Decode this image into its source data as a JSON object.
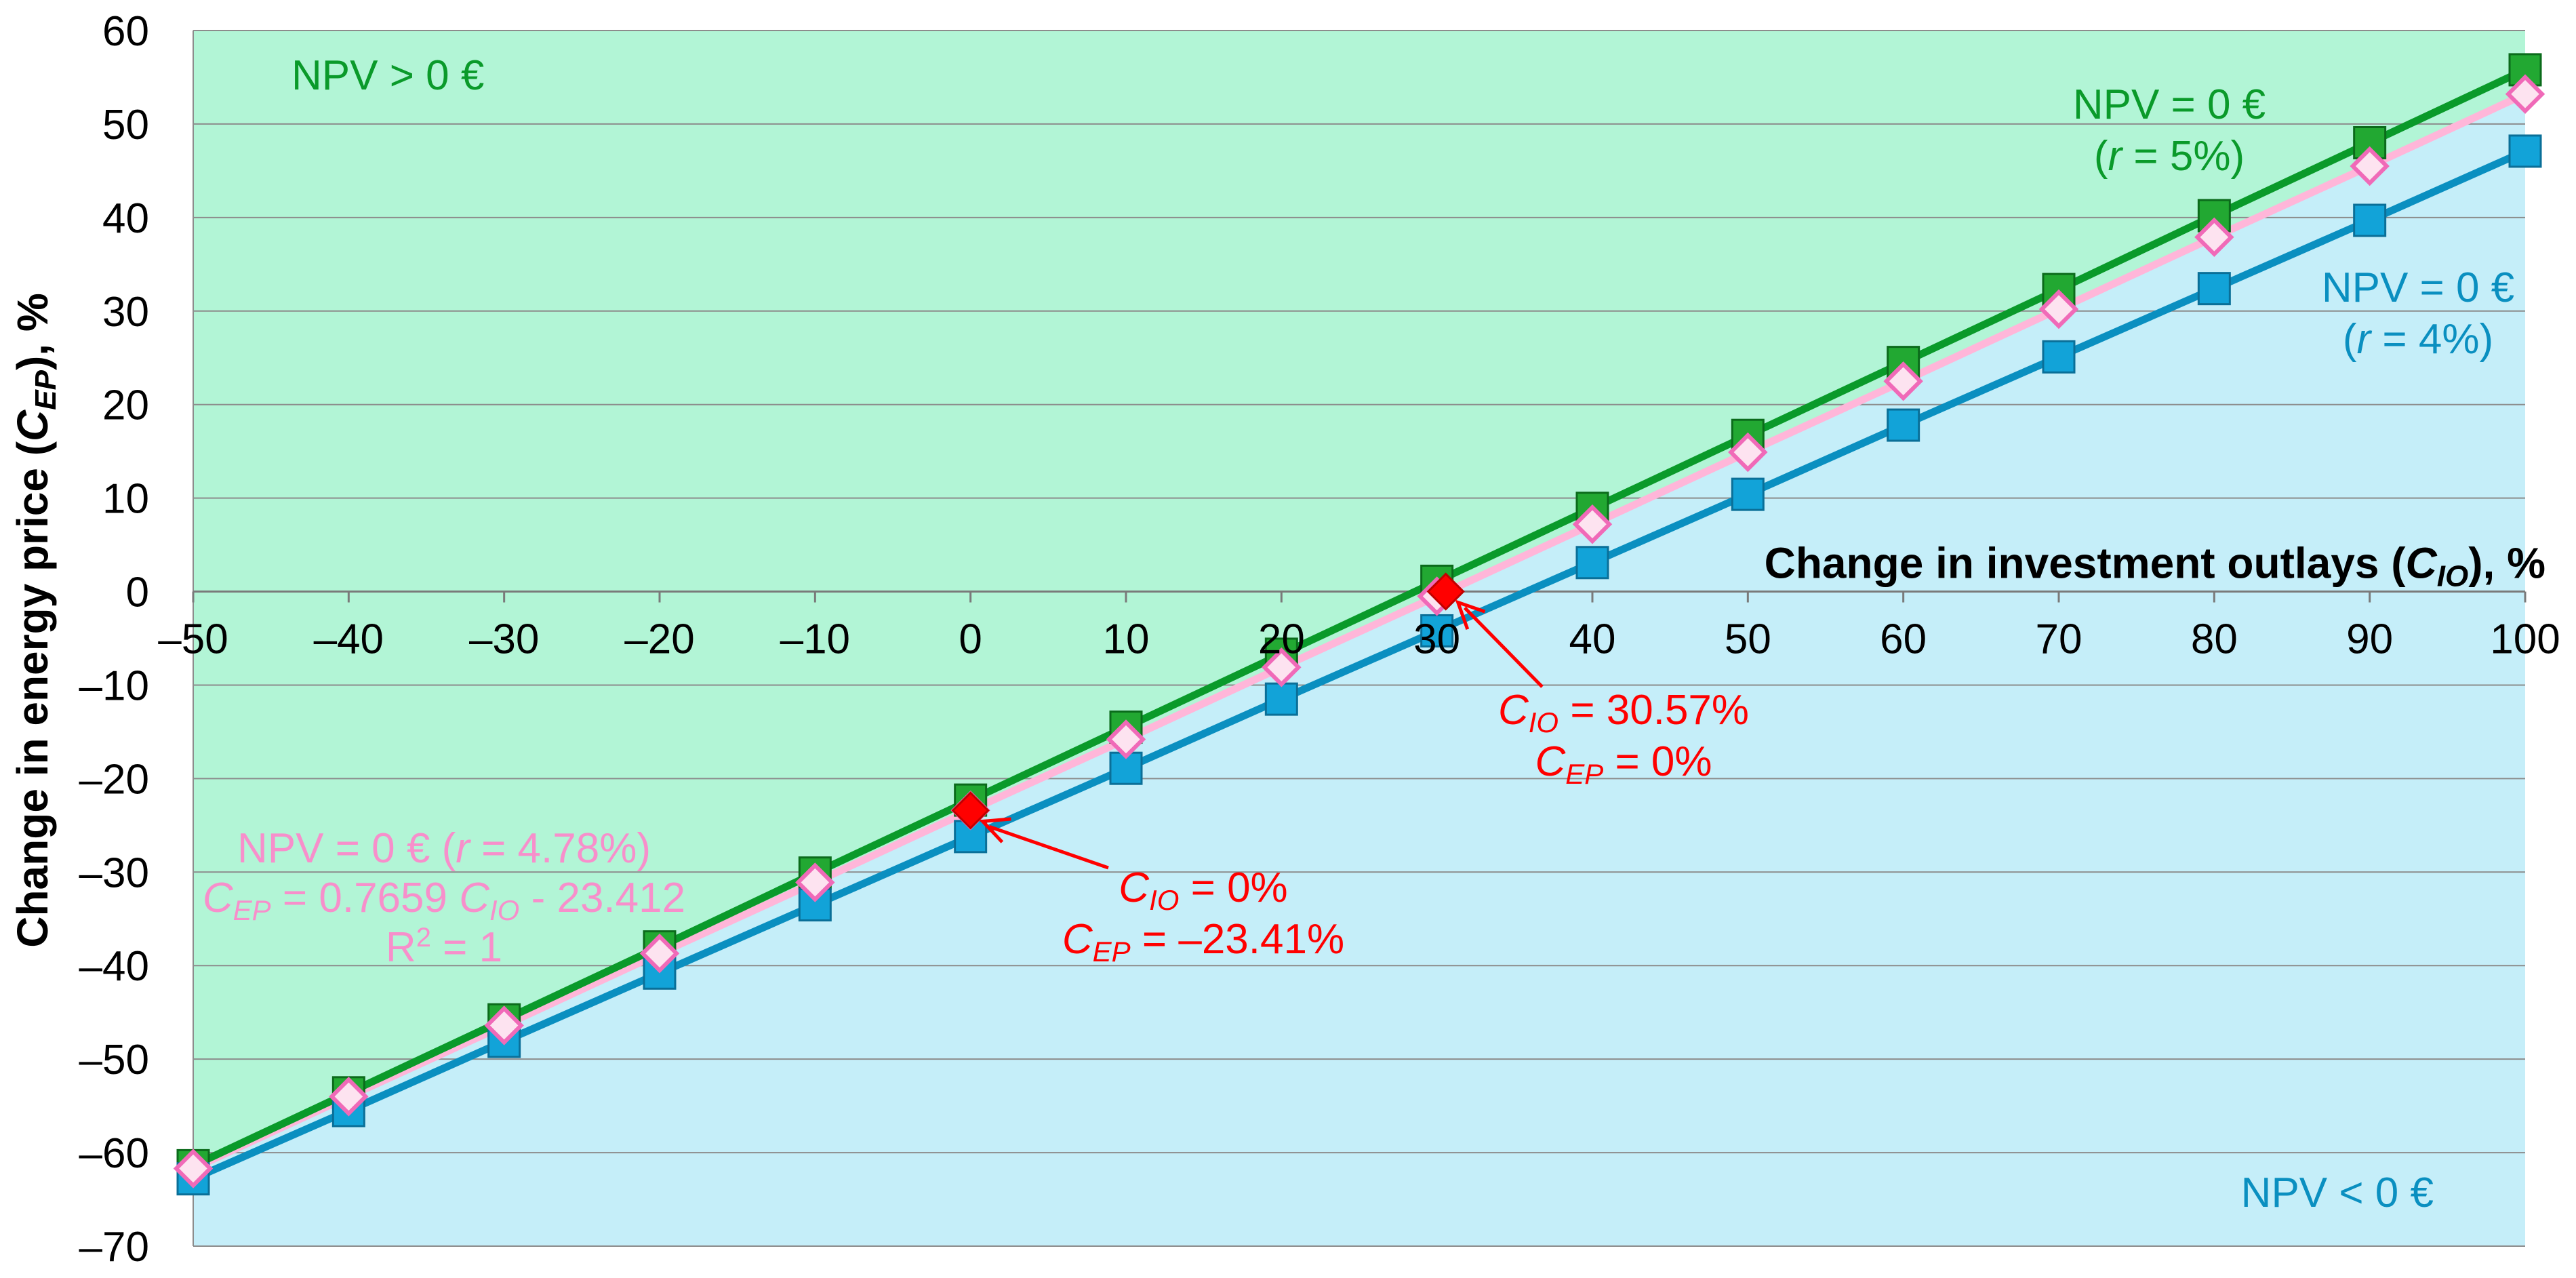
{
  "chart_data": {
    "type": "line",
    "xlabel": {
      "pre": "Change in investment outlays (",
      "var": "C",
      "sub": "IO",
      "post": "), %"
    },
    "ylabel": {
      "pre": "Change in energy price (",
      "var": "C",
      "sub": "EP",
      "post": "), %"
    },
    "xlim": [
      -50,
      100
    ],
    "ylim": [
      -70,
      60
    ],
    "xticks": [
      -50,
      -40,
      -30,
      -20,
      -10,
      0,
      10,
      20,
      30,
      40,
      50,
      60,
      70,
      80,
      90,
      100
    ],
    "yticks": [
      60,
      50,
      40,
      30,
      20,
      10,
      0,
      -10,
      -20,
      -30,
      -40,
      -50,
      -60,
      -70
    ],
    "tick_labels": {
      "x": [
        "–50",
        "–40",
        "–30",
        "–20",
        "–10",
        "0",
        "10",
        "20",
        "30",
        "40",
        "50",
        "60",
        "70",
        "80",
        "90",
        "100"
      ],
      "y": [
        "60",
        "50",
        "40",
        "30",
        "20",
        "10",
        "0",
        "–10",
        "–20",
        "–30",
        "–40",
        "–50",
        "–60",
        "–70"
      ]
    },
    "grid": "horizontal",
    "regions": [
      {
        "label": "NPV > 0 €",
        "color": "#b2f5d6"
      },
      {
        "label": "NPV < 0 €",
        "color": "#c5eef9"
      }
    ],
    "x": [
      -50,
      -40,
      -30,
      -20,
      -10,
      0,
      10,
      20,
      30,
      40,
      50,
      60,
      70,
      80,
      90,
      100
    ],
    "series": [
      {
        "label_line1": "NPV = 0 €",
        "label_r": "r",
        "label_rest": " = 5%)",
        "color": "#0a9a2a",
        "marker": "square-green",
        "values": [
          -61.4,
          -53.6,
          -45.8,
          -38.0,
          -30.1,
          -22.3,
          -14.5,
          -6.7,
          1.1,
          8.9,
          16.7,
          24.5,
          32.3,
          40.2,
          48.0,
          55.8
        ]
      },
      {
        "label_line1": "NPV = 0 €",
        "label_r": "r",
        "label_rest": " = 4%)",
        "color": "#0a8fc0",
        "marker": "square-blue",
        "values": [
          -62.8,
          -55.5,
          -48.1,
          -40.8,
          -33.5,
          -26.2,
          -18.9,
          -11.5,
          -4.2,
          3.1,
          10.4,
          17.8,
          25.1,
          32.4,
          39.7,
          47.1
        ]
      },
      {
        "label_line1": "NPV = 0 € (",
        "label_r": "r",
        "label_rest": " = 4.78%)",
        "color": "#ffb6d9",
        "marker": "diamond-pink",
        "equation": {
          "a": "C",
          "a_sub": "EP",
          "mid": " = 0.7659 ",
          "b": "C",
          "b_sub": "IO",
          "end": " - 23.412"
        },
        "r2": {
          "pre": "R",
          "sup": "2",
          "post": " = 1"
        },
        "values": [
          -61.7,
          -54.0,
          -46.4,
          -38.7,
          -31.1,
          -23.4,
          -15.8,
          -8.1,
          -0.5,
          7.2,
          14.9,
          22.5,
          30.2,
          37.9,
          45.5,
          53.2
        ]
      }
    ],
    "highlight_points": [
      {
        "x": 0,
        "y": -23.41,
        "line1": {
          "var": "C",
          "sub": "IO",
          "text": " = 0%"
        },
        "line2": {
          "var": "C",
          "sub": "EP",
          "text": " = –23.41%"
        }
      },
      {
        "x": 30.57,
        "y": 0,
        "line1": {
          "var": "C",
          "sub": "IO",
          "text": " = 30.57%"
        },
        "line2": {
          "var": "C",
          "sub": "EP",
          "text": " = 0%"
        }
      }
    ]
  }
}
